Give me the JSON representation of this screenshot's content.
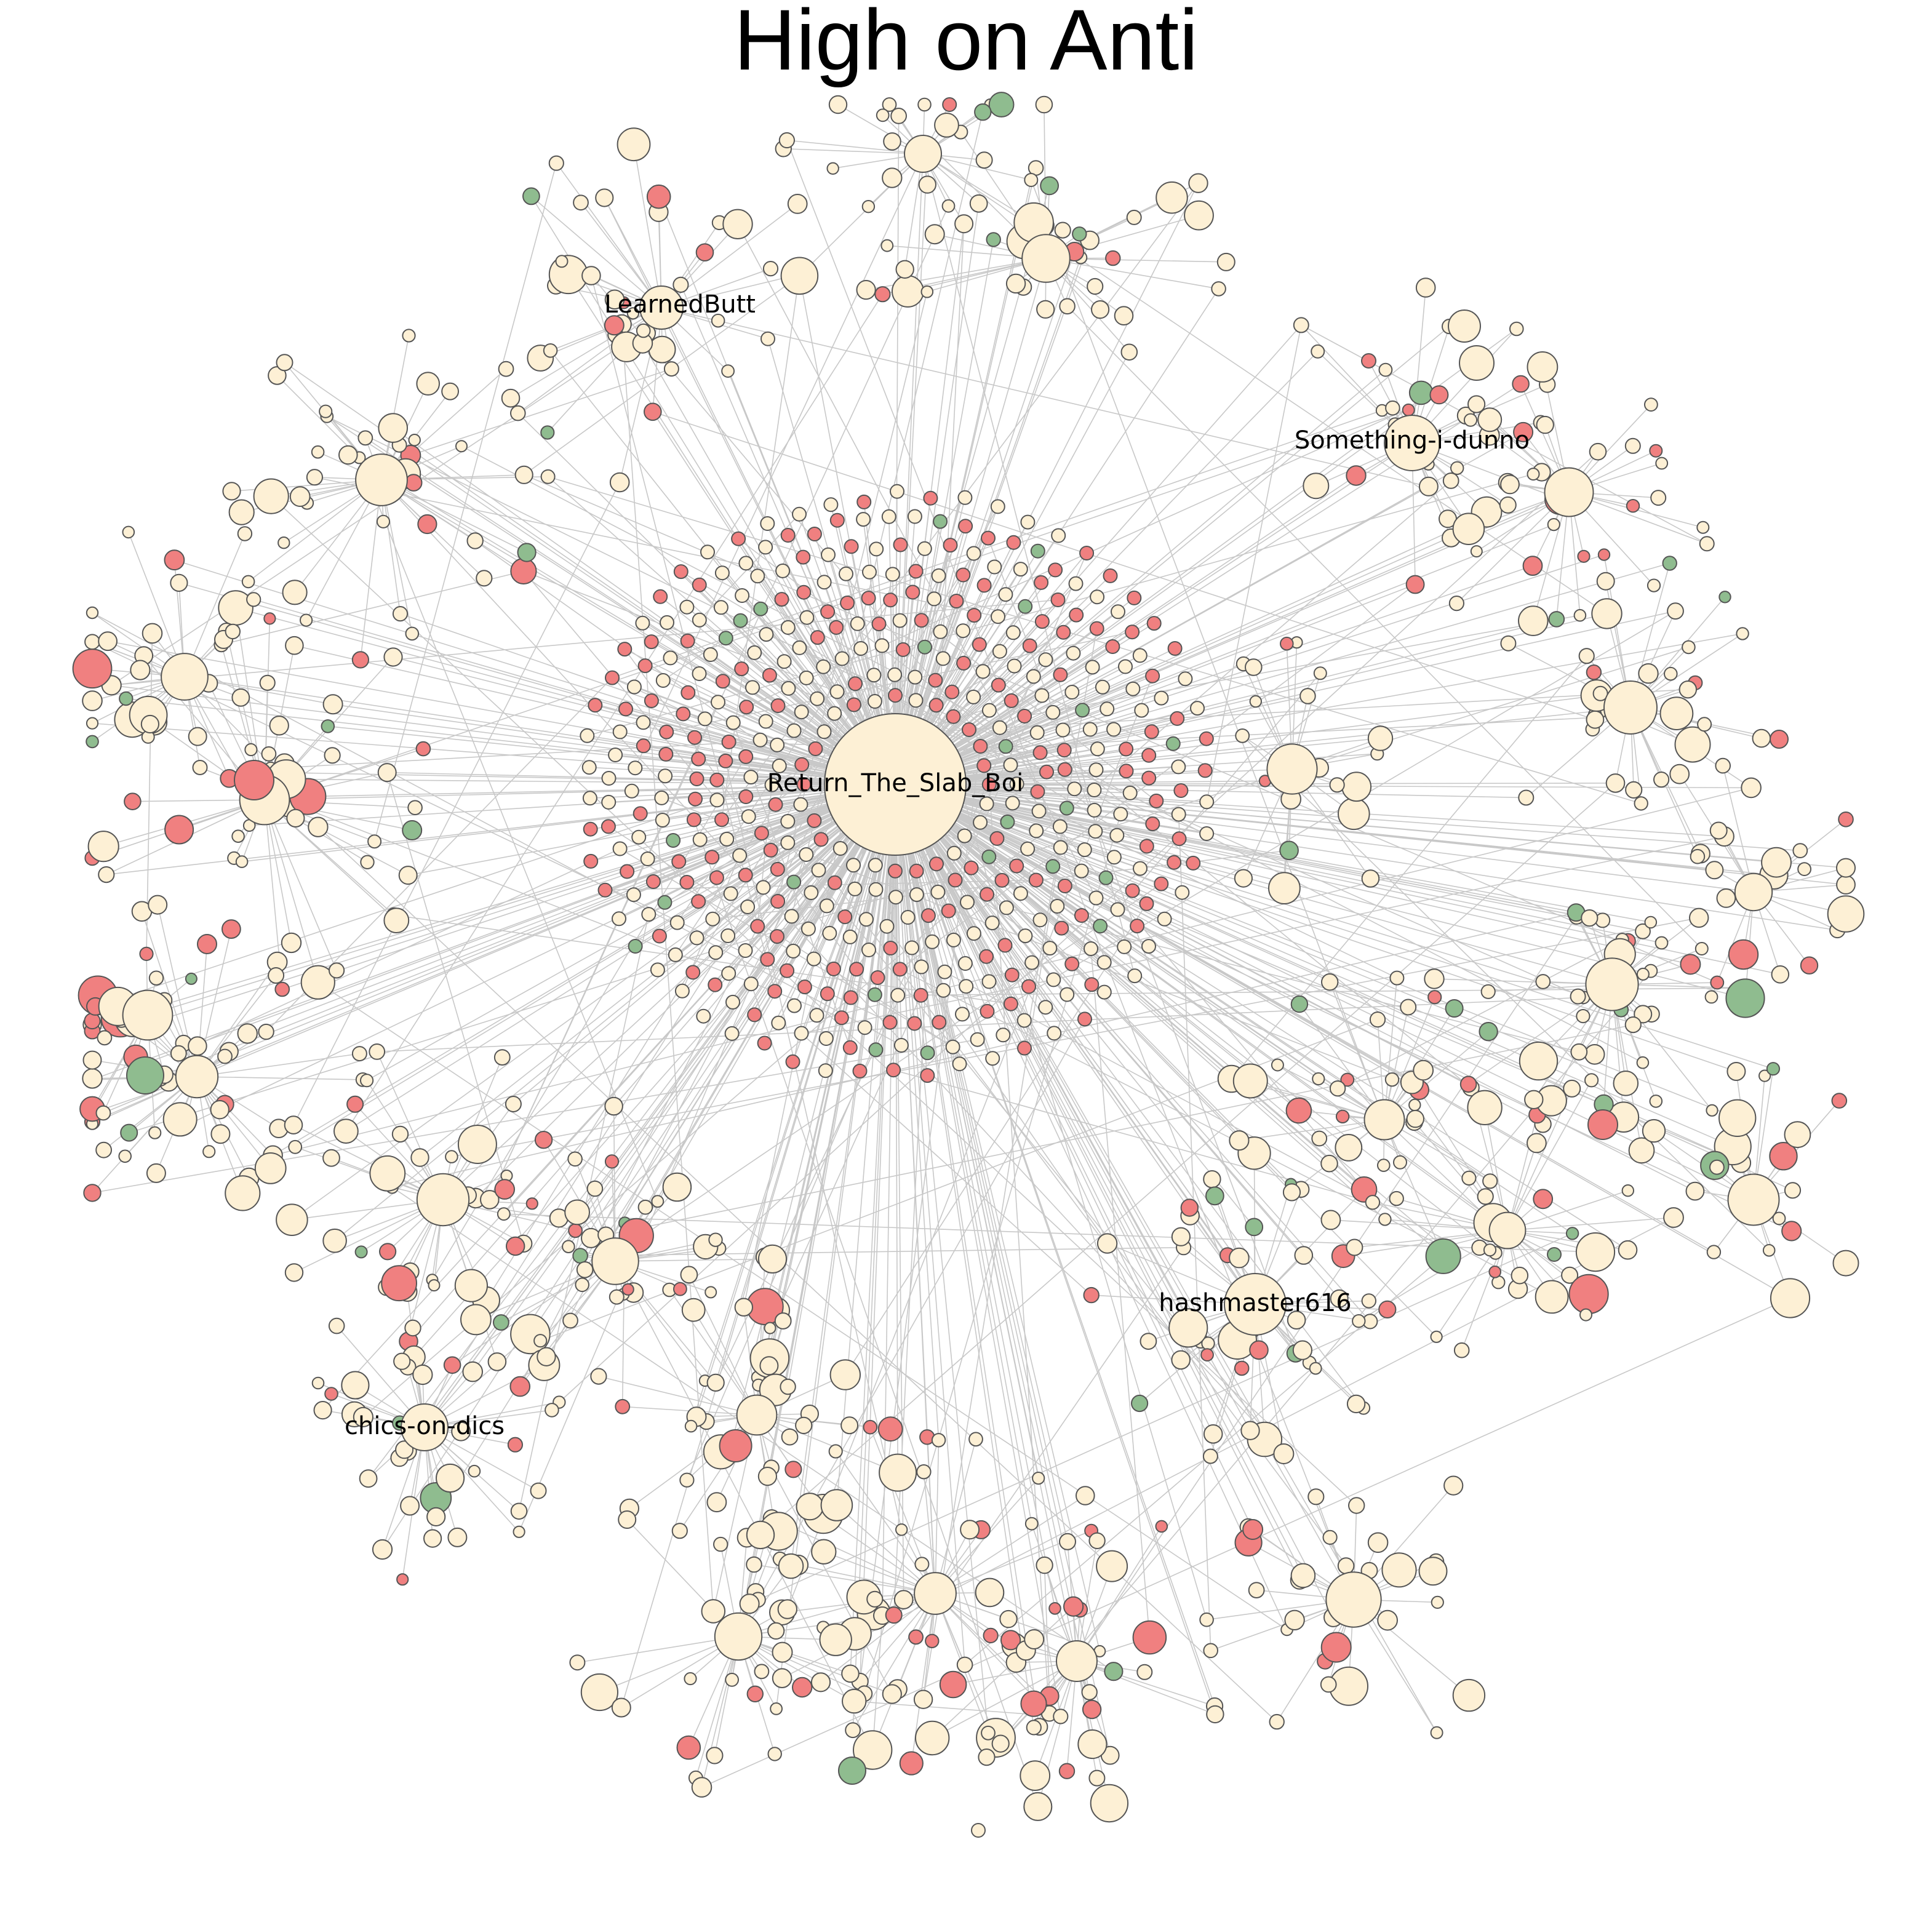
{
  "title": "High on Anti",
  "colors": {
    "default": "#fdf0d5",
    "red": "#f08080",
    "green": "#8fbc8f",
    "edge": "#c8c8c8",
    "stroke": "#555555"
  },
  "hubs": [
    {
      "id": "Return_The_Slab_Boi",
      "label": "Return_The_Slab_Boi"
    },
    {
      "id": "LearnedButt",
      "label": "LearnedButt"
    },
    {
      "id": "Something-i-dunno",
      "label": "Something-i-dunno"
    },
    {
      "id": "hashmaster616",
      "label": "hashmaster616"
    },
    {
      "id": "chics-on-dics",
      "label": "chics-on-dics"
    }
  ]
}
